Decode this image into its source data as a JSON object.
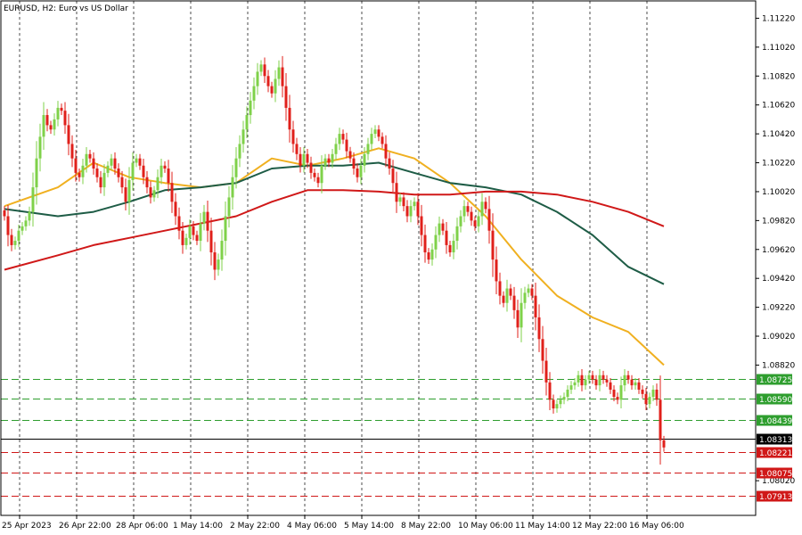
{
  "header": {
    "title": "EURUSD, H2:  Euro vs US Dollar"
  },
  "chart_data": {
    "type": "candlestick",
    "symbol": "EURUSD",
    "timeframe": "H2",
    "title": "EURUSD, H2:  Euro vs US Dollar",
    "ylim": [
      1.0778,
      1.1134
    ],
    "y_ticks": [
      "1.11220",
      "1.11020",
      "1.10820",
      "1.10620",
      "1.10420",
      "1.10220",
      "1.10020",
      "1.09820",
      "1.09620",
      "1.09420",
      "1.09220",
      "1.09020",
      "1.08820",
      "1.08020"
    ],
    "y_tick_values": [
      1.1122,
      1.1102,
      1.1082,
      1.1062,
      1.1042,
      1.1022,
      1.1002,
      1.0982,
      1.0962,
      1.0942,
      1.0922,
      1.0902,
      1.0882,
      1.0802
    ],
    "x_ticks": [
      "25 Apr 2023",
      "26 Apr 22:00",
      "28 Apr 06:00",
      "1 May 14:00",
      "2 May 22:00",
      "4 May 06:00",
      "5 May 14:00",
      "8 May 22:00",
      "10 May 06:00",
      "11 May 14:00",
      "12 May 22:00",
      "16 May 06:00"
    ],
    "x_tick_index": [
      0,
      16,
      32,
      48,
      64,
      80,
      96,
      112,
      128,
      144,
      160,
      176
    ],
    "grid": "vertical-dashed",
    "bull_color": "#7fd14a",
    "bear_color": "#e0201b",
    "close": [
      1.0985,
      1.0972,
      1.0965,
      1.0968,
      1.0975,
      1.0978,
      1.0982,
      1.0988,
      1.1005,
      1.1025,
      1.104,
      1.1055,
      1.1048,
      1.1045,
      1.1052,
      1.106,
      1.1058,
      1.1048,
      1.1035,
      1.1025,
      1.1015,
      1.1012,
      1.102,
      1.1028,
      1.1025,
      1.1018,
      1.1012,
      1.1005,
      1.1015,
      1.102,
      1.1025,
      1.1018,
      1.1012,
      1.1005,
      1.0995,
      1.101,
      1.1022,
      1.1025,
      1.102,
      1.1012,
      1.1005,
      1.0998,
      1.1003,
      1.1012,
      1.102,
      1.1018,
      1.1008,
      1.0995,
      1.0985,
      1.0975,
      1.0965,
      1.097,
      1.0978,
      1.0972,
      1.0968,
      1.098,
      1.0988,
      1.0975,
      1.096,
      1.0948,
      1.0955,
      1.0968,
      1.0985,
      1.0998,
      1.1012,
      1.1025,
      1.1035,
      1.1045,
      1.1055,
      1.1065,
      1.1075,
      1.1085,
      1.109,
      1.1082,
      1.1075,
      1.107,
      1.108,
      1.1088,
      1.1075,
      1.106,
      1.1045,
      1.1035,
      1.1028,
      1.102,
      1.1028,
      1.1022,
      1.1015,
      1.1012,
      1.1008,
      1.102,
      1.1025,
      1.1022,
      1.1028,
      1.1035,
      1.1042,
      1.1038,
      1.103,
      1.1025,
      1.1018,
      1.1012,
      1.102,
      1.1028,
      1.1035,
      1.1042,
      1.1045,
      1.104,
      1.1035,
      1.1025,
      1.1018,
      1.1008,
      1.0995,
      1.0998,
      1.0992,
      1.0985,
      1.0992,
      1.0995,
      1.0985,
      1.0972,
      1.096,
      1.0955,
      1.0962,
      1.0972,
      1.098,
      1.0975,
      1.0965,
      1.096,
      1.0968,
      1.0978,
      1.0985,
      1.0992,
      1.0988,
      1.0982,
      1.0978,
      1.0985,
      1.0995,
      1.099,
      1.0975,
      1.0955,
      1.094,
      1.093,
      1.0925,
      1.0935,
      1.093,
      1.092,
      1.0908,
      1.0925,
      1.0932,
      1.0935,
      1.093,
      1.0915,
      1.09,
      1.0885,
      1.087,
      1.0858,
      1.0852,
      1.0855,
      1.0858,
      1.086,
      1.0865,
      1.0868,
      1.087,
      1.0875,
      1.0868,
      1.0872,
      1.0875,
      1.0872,
      1.0868,
      1.0875,
      1.0872,
      1.087,
      1.0865,
      1.086,
      1.0858,
      1.0868,
      1.0875,
      1.0872,
      1.0868,
      1.087,
      1.0865,
      1.0862,
      1.0855,
      1.086,
      1.0865,
      1.0858,
      1.083,
      1.0825
    ],
    "moving_averages": [
      {
        "color": "#f0b020",
        "points": [
          [
            0,
            1.0992
          ],
          [
            15,
            1.1005
          ],
          [
            25,
            1.1022
          ],
          [
            35,
            1.1012
          ],
          [
            45,
            1.1008
          ],
          [
            55,
            1.1005
          ],
          [
            65,
            1.1008
          ],
          [
            75,
            1.1025
          ],
          [
            85,
            1.102
          ],
          [
            95,
            1.1025
          ],
          [
            105,
            1.1032
          ],
          [
            115,
            1.1025
          ],
          [
            125,
            1.1008
          ],
          [
            135,
            1.0985
          ],
          [
            145,
            1.0955
          ],
          [
            155,
            1.093
          ],
          [
            165,
            1.0915
          ],
          [
            175,
            1.0905
          ],
          [
            185,
            1.0882
          ]
        ]
      },
      {
        "color": "#1e5c46",
        "points": [
          [
            0,
            1.099
          ],
          [
            15,
            1.0985
          ],
          [
            25,
            1.0988
          ],
          [
            35,
            1.0995
          ],
          [
            45,
            1.1003
          ],
          [
            55,
            1.1005
          ],
          [
            65,
            1.1008
          ],
          [
            75,
            1.1018
          ],
          [
            85,
            1.102
          ],
          [
            95,
            1.102
          ],
          [
            105,
            1.1022
          ],
          [
            115,
            1.1015
          ],
          [
            125,
            1.1008
          ],
          [
            135,
            1.1005
          ],
          [
            145,
            1.1
          ],
          [
            155,
            1.0988
          ],
          [
            165,
            1.0972
          ],
          [
            175,
            1.095
          ],
          [
            185,
            1.0938
          ]
        ]
      },
      {
        "color": "#d01818",
        "points": [
          [
            0,
            1.0948
          ],
          [
            15,
            1.0958
          ],
          [
            25,
            1.0965
          ],
          [
            35,
            1.097
          ],
          [
            45,
            1.0975
          ],
          [
            55,
            1.098
          ],
          [
            65,
            1.0985
          ],
          [
            75,
            1.0995
          ],
          [
            85,
            1.1003
          ],
          [
            95,
            1.1003
          ],
          [
            105,
            1.1002
          ],
          [
            115,
            1.1
          ],
          [
            125,
            1.1
          ],
          [
            135,
            1.1002
          ],
          [
            145,
            1.1002
          ],
          [
            155,
            1.1
          ],
          [
            165,
            1.0995
          ],
          [
            175,
            1.0988
          ],
          [
            185,
            1.0978
          ]
        ]
      }
    ],
    "levels": [
      {
        "label": "1.08725",
        "value": 1.08725,
        "color": "#2e9e2e",
        "style": "dashed"
      },
      {
        "label": "1.08590",
        "value": 1.0859,
        "color": "#2e9e2e",
        "style": "dashed"
      },
      {
        "label": "1.08439",
        "value": 1.08439,
        "color": "#2e9e2e",
        "style": "dashed"
      },
      {
        "label": "1.08313",
        "value": 1.08313,
        "color": "#000000",
        "style": "solid"
      },
      {
        "label": "1.08221",
        "value": 1.08221,
        "color": "#d01818",
        "style": "dashed"
      },
      {
        "label": "1.08075",
        "value": 1.08075,
        "color": "#d01818",
        "style": "dashed"
      },
      {
        "label": "1.07913",
        "value": 1.07913,
        "color": "#d01818",
        "style": "dashed"
      }
    ]
  }
}
